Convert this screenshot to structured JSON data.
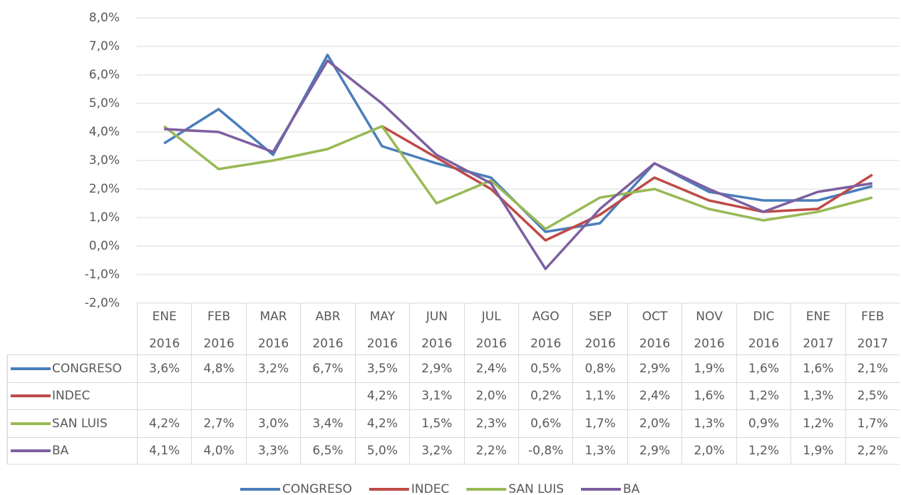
{
  "chart_data": {
    "type": "line",
    "categories": [
      "ENE 2016",
      "FEB 2016",
      "MAR 2016",
      "ABR 2016",
      "MAY 2016",
      "JUN 2016",
      "JUL 2016",
      "AGO 2016",
      "SEP 2016",
      "OCT 2016",
      "NOV 2016",
      "DIC 2016",
      "ENE 2017",
      "FEB 2017"
    ],
    "series": [
      {
        "name": "CONGRESO",
        "color": "#4a7ebb",
        "values": [
          3.6,
          4.8,
          3.2,
          6.7,
          3.5,
          2.9,
          2.4,
          0.5,
          0.8,
          2.9,
          1.9,
          1.6,
          1.6,
          2.1
        ],
        "value_labels": [
          "3,6%",
          "4,8%",
          "3,2%",
          "6,7%",
          "3,5%",
          "2,9%",
          "2,4%",
          "0,5%",
          "0,8%",
          "2,9%",
          "1,9%",
          "1,6%",
          "1,6%",
          "2,1%"
        ]
      },
      {
        "name": "INDEC",
        "color": "#be4b48",
        "values": [
          null,
          null,
          null,
          null,
          4.2,
          3.1,
          2.0,
          0.2,
          1.1,
          2.4,
          1.6,
          1.2,
          1.3,
          2.5
        ],
        "value_labels": [
          null,
          null,
          null,
          null,
          "4,2%",
          "3,1%",
          "2,0%",
          "0,2%",
          "1,1%",
          "2,4%",
          "1,6%",
          "1,2%",
          "1,3%",
          "2,5%"
        ]
      },
      {
        "name": "SAN LUIS",
        "color": "#98b954",
        "values": [
          4.2,
          2.7,
          3.0,
          3.4,
          4.2,
          1.5,
          2.3,
          0.6,
          1.7,
          2.0,
          1.3,
          0.9,
          1.2,
          1.7
        ],
        "value_labels": [
          "4,2%",
          "2,7%",
          "3,0%",
          "3,4%",
          "4,2%",
          "1,5%",
          "2,3%",
          "0,6%",
          "1,7%",
          "2,0%",
          "1,3%",
          "0,9%",
          "1,2%",
          "1,7%"
        ]
      },
      {
        "name": "BA",
        "color": "#7d5fa0",
        "values": [
          4.1,
          4.0,
          3.3,
          6.5,
          5.0,
          3.2,
          2.2,
          -0.8,
          1.3,
          2.9,
          2.0,
          1.2,
          1.9,
          2.2
        ],
        "value_labels": [
          "4,1%",
          "4,0%",
          "3,3%",
          "6,5%",
          "5,0%",
          "3,2%",
          "2,2%",
          "-0,8%",
          "1,3%",
          "2,9%",
          "2,0%",
          "1,2%",
          "1,9%",
          "2,2%"
        ]
      }
    ],
    "ylim": [
      -2,
      8
    ],
    "yticks": [
      {
        "value": -2,
        "label": "-2,0%"
      },
      {
        "value": -1,
        "label": "-1,0%"
      },
      {
        "value": 0,
        "label": "0,0%"
      },
      {
        "value": 1,
        "label": "1,0%"
      },
      {
        "value": 2,
        "label": "2,0%"
      },
      {
        "value": 3,
        "label": "3,0%"
      },
      {
        "value": 4,
        "label": "4,0%"
      },
      {
        "value": 5,
        "label": "5,0%"
      },
      {
        "value": 6,
        "label": "6,0%"
      },
      {
        "value": 7,
        "label": "7,0%"
      },
      {
        "value": 8,
        "label": "8,0%"
      }
    ],
    "grid": true,
    "legend": "bottom"
  }
}
